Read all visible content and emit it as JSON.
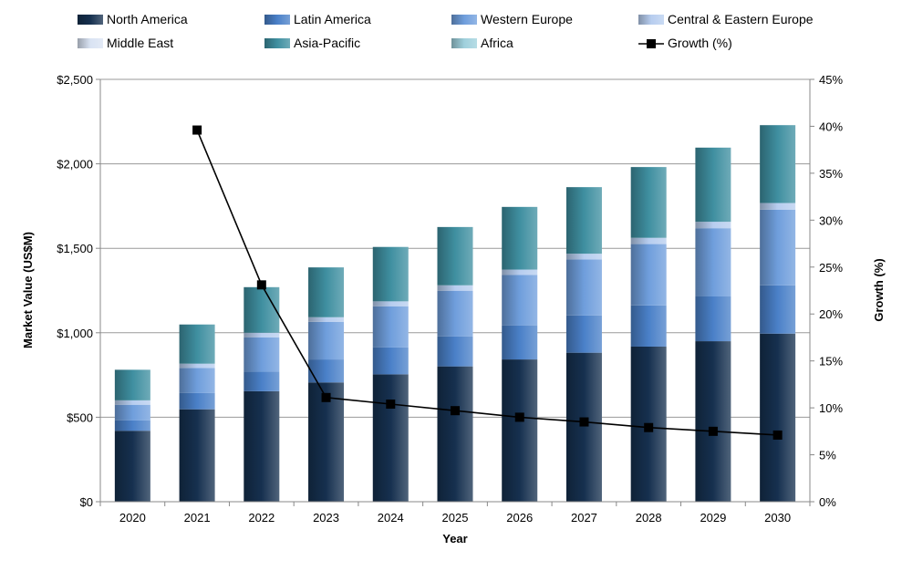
{
  "chart_data": {
    "type": "bar",
    "stacked": true,
    "categories": [
      "2020",
      "2021",
      "2022",
      "2023",
      "2024",
      "2025",
      "2026",
      "2027",
      "2028",
      "2029",
      "2030"
    ],
    "xlabel": "Year",
    "ylabel": "Market Value (US$M)",
    "y2label": "Growth (%)",
    "ylim": [
      0,
      2500
    ],
    "y2lim": [
      0,
      45
    ],
    "yticks": [
      "$0",
      "$500",
      "$1,000",
      "$1,500",
      "$2,000",
      "$2,500"
    ],
    "y2ticks": [
      "0%",
      "5%",
      "10%",
      "15%",
      "20%",
      "25%",
      "30%",
      "35%",
      "40%",
      "45%"
    ],
    "grid": true,
    "legend_position": "top",
    "series": [
      {
        "name": "North America",
        "color": "#16304f",
        "values": [
          420,
          547,
          654,
          706,
          754,
          801,
          842,
          882,
          918,
          950,
          995
        ]
      },
      {
        "name": "Latin America",
        "color": "#4a80c8",
        "values": [
          61,
          96,
          116,
          136,
          159,
          178,
          202,
          221,
          244,
          265,
          286
        ]
      },
      {
        "name": "Western Europe",
        "color": "#6f9edc",
        "values": [
          93,
          149,
          202,
          223,
          244,
          270,
          298,
          331,
          363,
          404,
          448
        ]
      },
      {
        "name": "Central & Eastern Europe",
        "color": "#b7cdef",
        "values": [
          26,
          25,
          28,
          27,
          29,
          32,
          32,
          34,
          37,
          38,
          39
        ]
      },
      {
        "name": "Middle East",
        "color": "#d9e3f3",
        "values": [
          0,
          0,
          0,
          0,
          0,
          0,
          0,
          0,
          0,
          0,
          0
        ]
      },
      {
        "name": "Asia-Pacific",
        "color": "#3f8fa0",
        "values": [
          181,
          232,
          270,
          295,
          322,
          345,
          371,
          394,
          419,
          439,
          461
        ]
      },
      {
        "name": "Africa",
        "color": "#9fd0dc",
        "values": [
          0,
          0,
          0,
          0,
          0,
          0,
          0,
          0,
          0,
          0,
          0
        ]
      }
    ],
    "line_series": {
      "name": "Growth (%)",
      "axis": "right",
      "values": [
        null,
        39.6,
        23.1,
        11.1,
        10.4,
        9.7,
        9.0,
        8.5,
        7.9,
        7.5,
        7.1
      ]
    }
  }
}
